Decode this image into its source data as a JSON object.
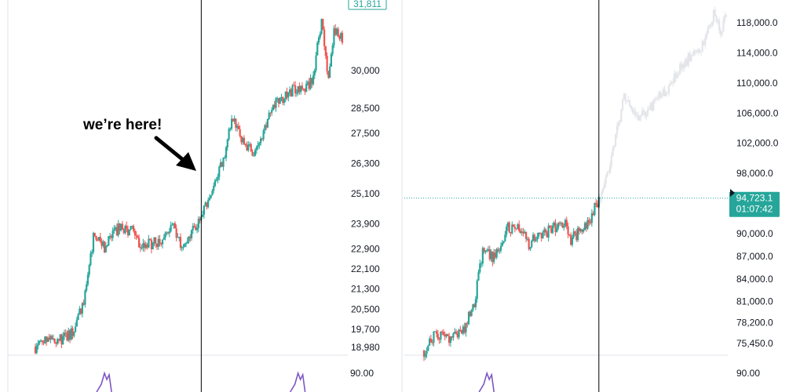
{
  "colors": {
    "up": "#26a69a",
    "down": "#ef5350",
    "ghost": "#e3e5e9",
    "oscillator": "#7e57c2",
    "divider": "#e0e3eb",
    "marker_line": "#000000",
    "price_line": "#26a69a"
  },
  "chart_data": [
    {
      "type": "candlestick",
      "title": "",
      "annotation": "we’re here!",
      "annotation_icon": "arrow-icon",
      "ylim": [
        18700,
        32800
      ],
      "y_ticks": [
        {
          "value": 30000,
          "label": "30,000"
        },
        {
          "value": 28500,
          "label": "28,500"
        },
        {
          "value": 27500,
          "label": "27,500"
        },
        {
          "value": 26300,
          "label": "26,300"
        },
        {
          "value": 25100,
          "label": "25,100"
        },
        {
          "value": 23900,
          "label": "23,900"
        },
        {
          "value": 22900,
          "label": "22,900"
        },
        {
          "value": 22100,
          "label": "22,100"
        },
        {
          "value": 21300,
          "label": "21,300"
        },
        {
          "value": 20500,
          "label": "20,500"
        },
        {
          "value": 19700,
          "label": "19,700"
        },
        {
          "value": 18980,
          "label": "18,980"
        }
      ],
      "last_price": {
        "value": 31811,
        "label": "31,811"
      },
      "price_path": [
        [
          0,
          19000
        ],
        [
          8,
          19400
        ],
        [
          20,
          19300
        ],
        [
          27,
          19600
        ],
        [
          35,
          20700
        ],
        [
          42,
          23300
        ],
        [
          50,
          23000
        ],
        [
          60,
          23700
        ],
        [
          70,
          23600
        ],
        [
          75,
          23000
        ],
        [
          90,
          23200
        ],
        [
          100,
          23900
        ],
        [
          105,
          23100
        ],
        [
          115,
          23700
        ],
        [
          120,
          24200
        ],
        [
          130,
          25400
        ],
        [
          136,
          26500
        ],
        [
          143,
          28200
        ],
        [
          150,
          27100
        ],
        [
          160,
          26700
        ],
        [
          170,
          28500
        ],
        [
          180,
          29000
        ],
        [
          190,
          29300
        ],
        [
          200,
          29500
        ],
        [
          207,
          31900
        ],
        [
          212,
          29700
        ],
        [
          216,
          31700
        ],
        [
          222,
          31300
        ]
      ],
      "marker_index": 120,
      "oscillator": {
        "tick": "90.00",
        "spikes": [
          50,
          190
        ]
      }
    },
    {
      "type": "candlestick",
      "title": "",
      "ylim": [
        74000,
        121000
      ],
      "y_ticks": [
        {
          "value": 118000,
          "label": "118,000.0"
        },
        {
          "value": 114000,
          "label": "114,000.0"
        },
        {
          "value": 110000,
          "label": "110,000.0"
        },
        {
          "value": 106000,
          "label": "106,000.0"
        },
        {
          "value": 102000,
          "label": "102,000.0"
        },
        {
          "value": 98000,
          "label": "98,000.0"
        },
        {
          "value": 90000,
          "label": "90,000.0"
        },
        {
          "value": 87000,
          "label": "87,000.0"
        },
        {
          "value": 84000,
          "label": "84,000.0"
        },
        {
          "value": 81000,
          "label": "81,000.0"
        },
        {
          "value": 78200,
          "label": "78,200.0"
        },
        {
          "value": 75450,
          "label": "75,450.0"
        }
      ],
      "current_price": {
        "value": 94723.1,
        "label": "94,723.1",
        "countdown": "01:07:42"
      },
      "price_path": [
        [
          0,
          74500
        ],
        [
          8,
          76500
        ],
        [
          20,
          76200
        ],
        [
          27,
          76900
        ],
        [
          35,
          80000
        ],
        [
          42,
          87500
        ],
        [
          50,
          87000
        ],
        [
          60,
          91000
        ],
        [
          70,
          90200
        ],
        [
          75,
          88700
        ],
        [
          90,
          90400
        ],
        [
          100,
          91500
        ],
        [
          105,
          89200
        ],
        [
          115,
          91000
        ],
        [
          120,
          92500
        ],
        [
          125,
          94700
        ]
      ],
      "projection_path": [
        [
          125,
          94700
        ],
        [
          130,
          97000
        ],
        [
          136,
          101500
        ],
        [
          143,
          108500
        ],
        [
          150,
          105500
        ],
        [
          160,
          106500
        ],
        [
          170,
          108500
        ],
        [
          180,
          111000
        ],
        [
          190,
          113500
        ],
        [
          200,
          115000
        ],
        [
          207,
          119500
        ],
        [
          212,
          116500
        ],
        [
          216,
          119000
        ]
      ],
      "marker_index": 125,
      "oscillator": {
        "tick": "90.00",
        "spikes": [
          45
        ]
      }
    }
  ]
}
